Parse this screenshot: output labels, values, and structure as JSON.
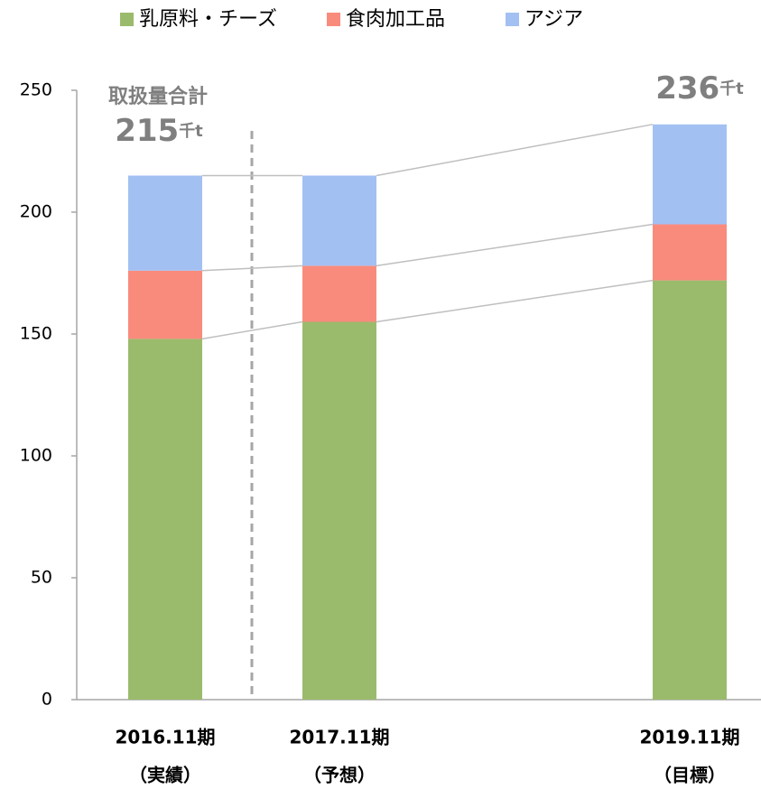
{
  "chart_data": {
    "type": "stacked_bar",
    "categories": [
      "2016.11期",
      "2017.11期",
      "2019.11期"
    ],
    "category_notes": [
      "（実績）",
      "（予想）",
      "（目標）"
    ],
    "series": [
      {
        "name": "乳原料・チーズ",
        "color": "#9bbb6c",
        "values": [
          148,
          155,
          172
        ]
      },
      {
        "name": "食肉加工品",
        "color": "#f98b7d",
        "values": [
          28,
          23,
          23
        ]
      },
      {
        "name": "アジア",
        "color": "#a3c0f3",
        "values": [
          39,
          37,
          41
        ]
      }
    ],
    "ylim": [
      0,
      250
    ],
    "yticks": [
      0,
      50,
      100,
      150,
      200,
      250
    ],
    "annotations": [
      {
        "label": "取扱量合計",
        "text": "215",
        "unit": "千t"
      },
      {
        "text": "236",
        "unit": "千t"
      }
    ]
  }
}
